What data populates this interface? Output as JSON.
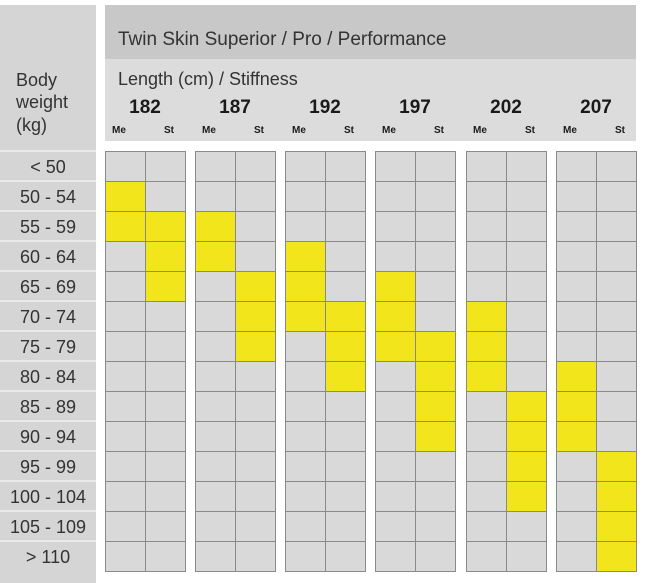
{
  "chart_data": {
    "type": "table",
    "title": "Twin Skin Superior / Pro / Performance",
    "row_header": [
      "Body",
      "weight",
      "(kg)"
    ],
    "column_header": "Length (cm) / Stiffness",
    "lengths": [
      "182",
      "187",
      "192",
      "197",
      "202",
      "207"
    ],
    "stiffness_labels": [
      "Me",
      "St"
    ],
    "weight_rows": [
      "< 50",
      "50 - 54",
      "55 - 59",
      "60 - 64",
      "65 - 69",
      "70 - 74",
      "75 - 79",
      "80 - 84",
      "85 - 89",
      "90 - 94",
      "95 - 99",
      "100 - 104",
      "105 - 109",
      "> 110"
    ],
    "recommended": [
      {
        "length": "182",
        "Me": [
          "50 - 54",
          "55 - 59"
        ],
        "St": [
          "55 - 59",
          "60 - 64",
          "65 - 69"
        ]
      },
      {
        "length": "187",
        "Me": [
          "55 - 59",
          "60 - 64"
        ],
        "St": [
          "65 - 69",
          "70 - 74",
          "75 - 79"
        ]
      },
      {
        "length": "192",
        "Me": [
          "60 - 64",
          "65 - 69",
          "70 - 74"
        ],
        "St": [
          "70 - 74",
          "75 - 79",
          "80 - 84"
        ]
      },
      {
        "length": "197",
        "Me": [
          "65 - 69",
          "70 - 74",
          "75 - 79"
        ],
        "St": [
          "75 - 79",
          "80 - 84",
          "85 - 89",
          "90 - 94"
        ]
      },
      {
        "length": "202",
        "Me": [
          "70 - 74",
          "75 - 79",
          "80 - 84"
        ],
        "St": [
          "85 - 89",
          "90 - 94",
          "95 - 99",
          "100 - 104"
        ]
      },
      {
        "length": "207",
        "Me": [
          "80 - 84",
          "85 - 89",
          "90 - 94"
        ],
        "St": [
          "95 - 99",
          "100 - 104",
          "105 - 109",
          "> 110"
        ]
      }
    ],
    "colors": {
      "recommended": "#f2e51c",
      "empty": "#d9d9d9",
      "header": "#c8c8c8",
      "subheader": "#dcdcdc",
      "grid": "#8a8a8a"
    }
  }
}
